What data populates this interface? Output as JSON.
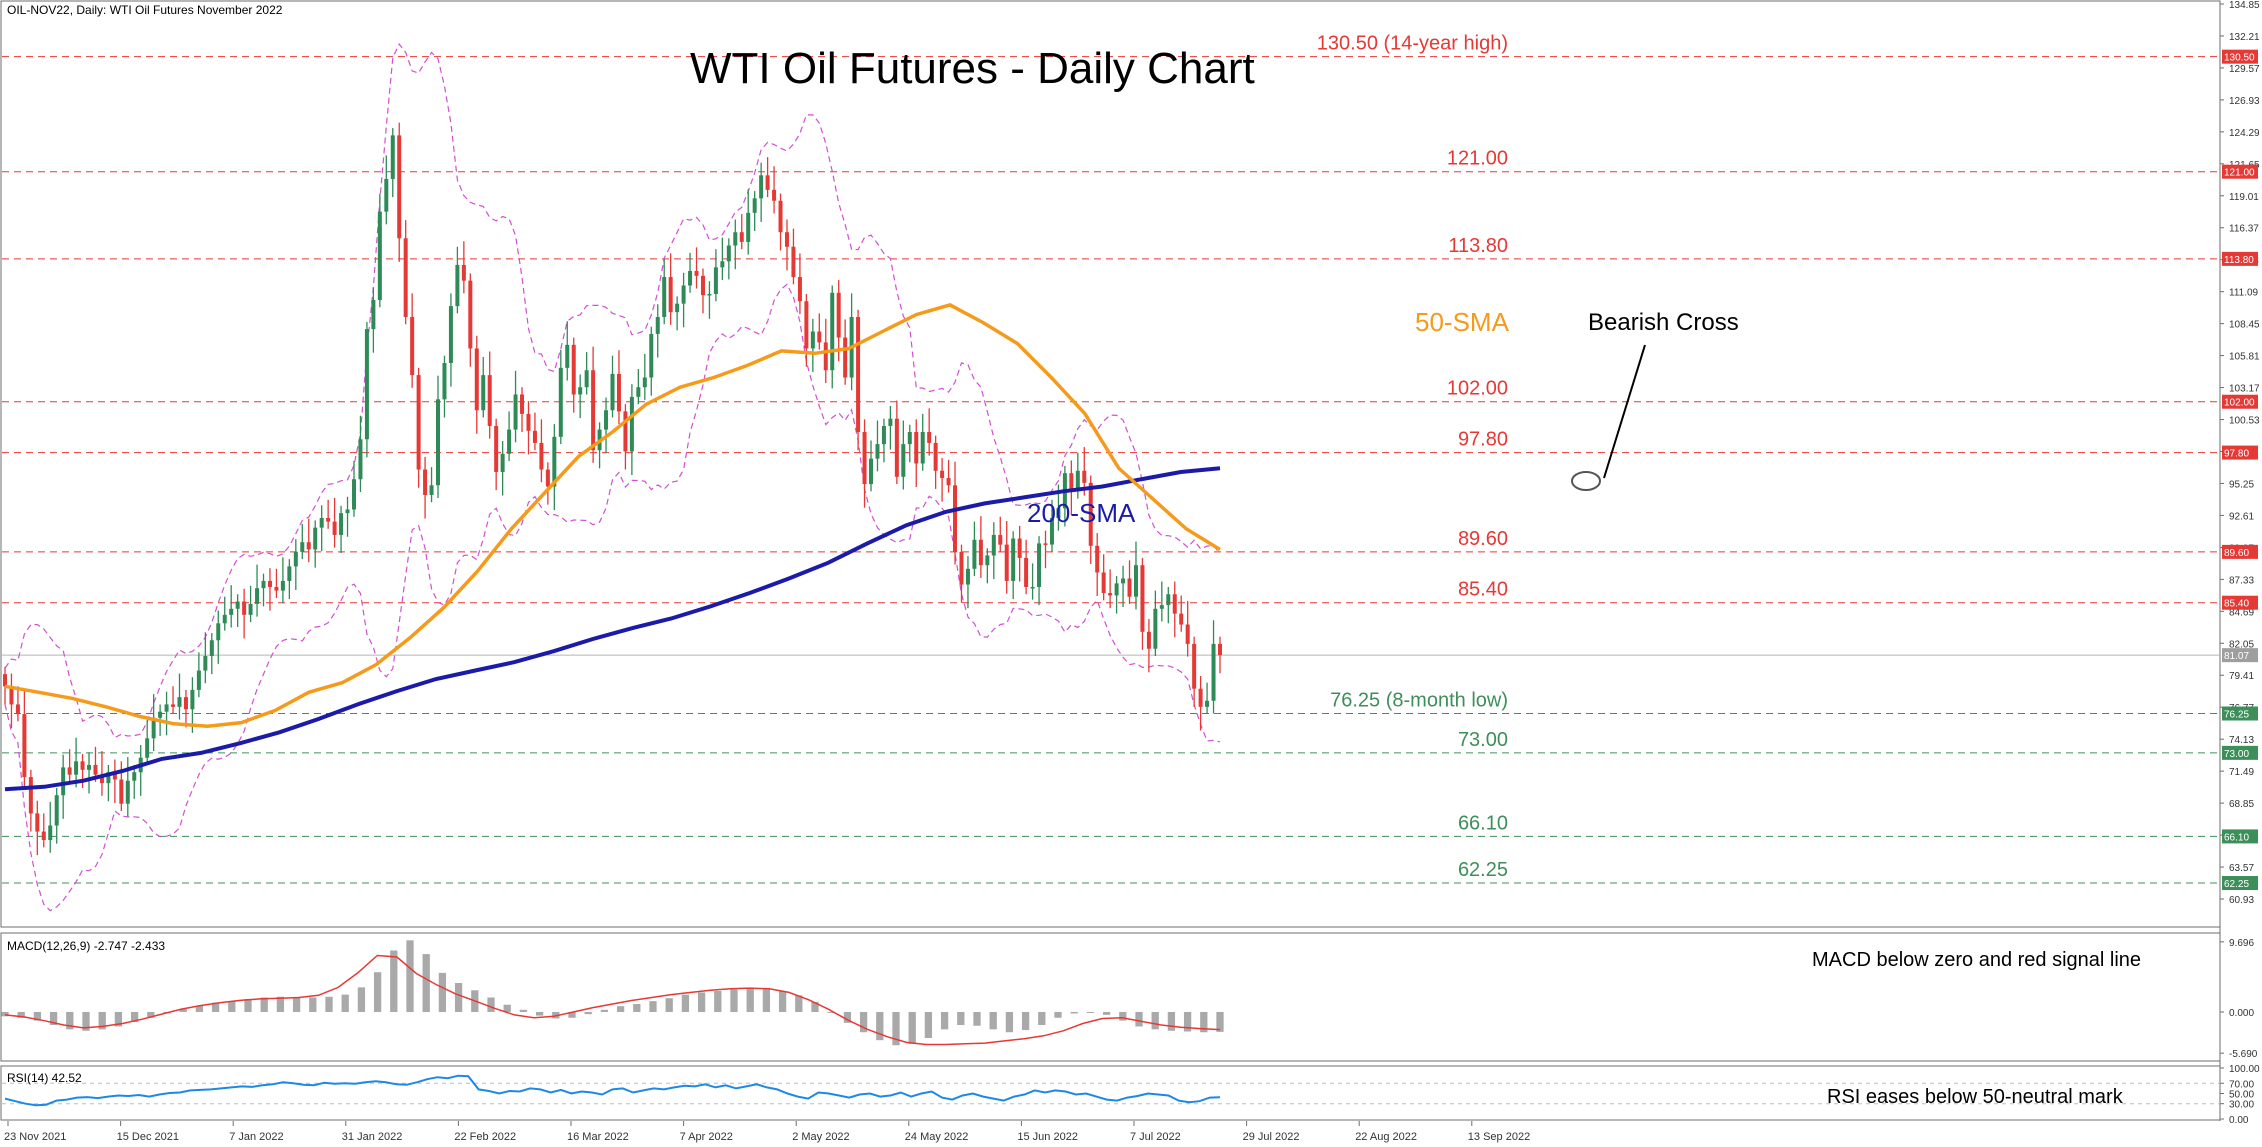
{
  "header": {
    "symbol_line": "OIL-NOV22, Daily:  WTI Oil Futures November 2022"
  },
  "chart_data": {
    "type": "candlestick",
    "title": "WTI Oil Futures - Daily Chart",
    "x_dates": [
      "23 Nov 2021",
      "15 Dec 2021",
      "7 Jan 2022",
      "31 Jan 2022",
      "22 Feb 2022",
      "16 Mar 2022",
      "7 Apr 2022",
      "2 May 2022",
      "24 May 2022",
      "15 Jun 2022",
      "7 Jul 2022",
      "29 Jul 2022",
      "22 Aug 2022",
      "13 Sep 2022"
    ],
    "price_axis": {
      "ticks": [
        "134.85",
        "132.21",
        "129.57",
        "126.93",
        "124.29",
        "121.65",
        "119.01",
        "116.37",
        "113.73",
        "111.09",
        "108.45",
        "105.81",
        "103.17",
        "100.53",
        "97.89",
        "95.25",
        "92.61",
        "89.97",
        "87.33",
        "84.69",
        "82.05",
        "79.41",
        "76.77",
        "74.13",
        "71.49",
        "68.85",
        "66.21",
        "63.57",
        "60.93"
      ],
      "range": [
        58.7,
        134.85
      ],
      "current_price": "81.07"
    },
    "levels": [
      {
        "value": 130.5,
        "label": "130.50 (14-year high)",
        "tag": "130.50",
        "type": "resistance"
      },
      {
        "value": 121.0,
        "label": "121.00",
        "tag": "121.00",
        "type": "resistance"
      },
      {
        "value": 113.8,
        "label": "113.80",
        "tag": "113.80",
        "type": "resistance"
      },
      {
        "value": 102.0,
        "label": "102.00",
        "tag": "102.00",
        "type": "resistance"
      },
      {
        "value": 97.8,
        "label": "97.80",
        "tag": "97.80",
        "type": "resistance"
      },
      {
        "value": 89.6,
        "label": "89.60",
        "tag": "89.60",
        "type": "resistance"
      },
      {
        "value": 85.4,
        "label": "85.40",
        "tag": "85.40",
        "type": "resistance"
      },
      {
        "value": 76.25,
        "label": "76.25 (8-month low)",
        "tag": "76.25",
        "type": "support"
      },
      {
        "value": 73.0,
        "label": "73.00",
        "tag": "73.00",
        "type": "support"
      },
      {
        "value": 66.1,
        "label": "66.10",
        "tag": "66.10",
        "type": "support"
      },
      {
        "value": 62.25,
        "label": "62.25",
        "tag": "62.25",
        "type": "support"
      }
    ],
    "close_series": [
      78.5,
      77.0,
      76.2,
      71.0,
      68.0,
      66.5,
      65.8,
      67.0,
      69.5,
      71.8,
      71.2,
      72.3,
      71.6,
      72.0,
      71.2,
      70.5,
      71.4,
      70.8,
      68.8,
      70.7,
      71.4,
      72.6,
      74.2,
      75.9,
      76.4,
      77.0,
      76.8,
      77.6,
      76.6,
      78.2,
      79.8,
      81.0,
      82.3,
      83.7,
      84.4,
      84.9,
      85.5,
      84.4,
      85.3,
      86.6,
      87.2,
      86.7,
      86.4,
      87.2,
      88.4,
      89.6,
      90.4,
      89.8,
      91.6,
      92.4,
      92.1,
      91.0,
      92.8,
      93.1,
      95.6,
      98.9,
      108.0,
      110.4,
      117.7,
      120.4,
      124.0,
      115.5,
      109.0,
      104.2,
      96.4,
      94.3,
      95.1,
      102.2,
      105.2,
      109.9,
      113.3,
      112.0,
      106.4,
      101.3,
      104.2,
      100.0,
      96.2,
      97.7,
      99.7,
      102.6,
      101.0,
      99.6,
      98.6,
      96.4,
      95.0,
      99.1,
      104.8,
      106.7,
      102.6,
      103.2,
      104.6,
      98.0,
      99.7,
      101.3,
      104.3,
      101.2,
      97.9,
      102.4,
      103.2,
      104.0,
      107.6,
      109.0,
      112.3,
      109.4,
      110.1,
      111.6,
      112.8,
      112.4,
      110.8,
      110.9,
      113.1,
      113.6,
      114.9,
      116.0,
      115.2,
      117.6,
      118.8,
      120.7,
      119.5,
      118.6,
      116.0,
      114.8,
      112.3,
      110.3,
      106.4,
      107.8,
      106.9,
      104.6,
      111.0,
      107.3,
      104.0,
      109.0,
      99.5,
      95.2,
      97.3,
      98.5,
      100.0,
      100.6,
      95.8,
      98.5,
      99.5,
      96.9,
      99.5,
      98.6,
      96.3,
      95.7,
      95.1,
      89.6,
      86.9,
      88.2,
      90.6,
      88.5,
      89.3,
      91.0,
      90.2,
      87.2,
      90.7,
      89.1,
      86.7,
      86.7,
      90.3,
      90.2,
      92.4,
      93.2,
      96.1,
      94.6,
      96.3,
      95.3,
      90.1,
      87.9,
      86.2,
      86.0,
      87.0,
      87.4,
      85.9,
      88.5,
      83.0,
      81.6,
      84.9,
      85.2,
      86.1,
      84.5,
      83.6,
      82.0,
      78.3,
      76.8,
      77.3,
      82.0,
      81.07
    ],
    "sma50_series": [
      78.5,
      78.0,
      77.5,
      76.8,
      76.0,
      75.4,
      75.2,
      75.5,
      76.5,
      78.0,
      78.8,
      80.3,
      82.5,
      85.0,
      88.0,
      91.5,
      94.5,
      97.5,
      99.5,
      101.8,
      103.2,
      104.0,
      105.0,
      106.2,
      106.0,
      106.4,
      107.8,
      109.2,
      110.0,
      108.5,
      106.8,
      104.0,
      101.0,
      96.5,
      94.0,
      91.5,
      89.8
    ],
    "sma200_series": [
      70.0,
      70.2,
      70.7,
      71.5,
      72.5,
      73.0,
      73.8,
      74.7,
      75.8,
      77.0,
      78.1,
      79.1,
      79.8,
      80.5,
      81.4,
      82.4,
      83.3,
      84.1,
      85.1,
      86.2,
      87.4,
      88.7,
      90.3,
      91.8,
      92.9,
      93.6,
      94.1,
      94.6,
      95.0,
      95.6,
      96.2,
      96.5
    ],
    "indicator_labels": {
      "sma50": "50-SMA",
      "sma200": "200-SMA",
      "cross": "Bearish Cross"
    },
    "macd": {
      "header": "MACD(12,26,9) -2.747 -2.433",
      "annotation": "MACD below zero and red signal line",
      "ticks": [
        "9.696",
        "0.000",
        "-5.690"
      ],
      "range": [
        -6.5,
        10.5
      ],
      "hist": [
        -0.6,
        -0.8,
        -1.2,
        -1.8,
        -2.4,
        -2.6,
        -2.4,
        -2.0,
        -1.4,
        -0.8,
        -0.2,
        0.4,
        0.9,
        1.3,
        1.5,
        1.8,
        2.0,
        2.1,
        2.0,
        2.0,
        2.1,
        2.4,
        3.4,
        5.5,
        8.5,
        9.9,
        8.0,
        5.4,
        4.0,
        3.0,
        2.0,
        1.0,
        0.3,
        -0.5,
        -0.9,
        -0.8,
        -0.3,
        0.3,
        0.8,
        1.1,
        1.5,
        1.9,
        2.4,
        2.7,
        2.9,
        3.1,
        3.3,
        3.3,
        2.9,
        2.3,
        1.4,
        0.0,
        -1.5,
        -2.8,
        -3.9,
        -4.6,
        -4.4,
        -3.6,
        -2.4,
        -1.8,
        -1.9,
        -2.4,
        -2.8,
        -2.5,
        -1.8,
        -0.8,
        -0.2,
        0.0,
        -0.4,
        -1.2,
        -2.0,
        -2.4,
        -2.6,
        -2.7,
        -2.8,
        -2.75
      ],
      "signal": [
        -0.4,
        -0.7,
        -1.2,
        -1.8,
        -2.2,
        -2.0,
        -1.6,
        -1.0,
        -0.3,
        0.4,
        0.9,
        1.3,
        1.6,
        1.8,
        1.9,
        2.0,
        2.3,
        3.4,
        5.4,
        7.8,
        7.6,
        5.3,
        3.8,
        2.5,
        1.5,
        0.5,
        -0.4,
        -0.8,
        -0.6,
        0.0,
        0.6,
        1.1,
        1.6,
        2.0,
        2.4,
        2.7,
        3.0,
        3.2,
        3.3,
        3.2,
        2.7,
        1.7,
        0.4,
        -1.1,
        -2.4,
        -3.4,
        -4.2,
        -4.5,
        -4.5,
        -4.4,
        -4.3,
        -4.0,
        -3.7,
        -3.3,
        -2.6,
        -1.6,
        -0.9,
        -0.8,
        -1.3,
        -1.8,
        -2.1,
        -2.3,
        -2.43
      ]
    },
    "rsi": {
      "header": "RSI(14) 42.52",
      "annotation": "RSI eases below 50-neutral mark",
      "ticks": [
        "100.00",
        "70.00",
        "50.00",
        "30.00",
        "0.00"
      ],
      "range": [
        0,
        100
      ],
      "values": [
        40,
        35,
        30,
        27,
        28,
        36,
        38,
        42,
        43,
        41,
        44,
        46,
        45,
        47,
        44,
        48,
        51,
        52,
        56,
        57,
        58,
        60,
        62,
        64,
        63,
        66,
        68,
        72,
        70,
        67,
        66,
        71,
        69,
        70,
        69,
        72,
        74,
        72,
        68,
        67,
        72,
        78,
        82,
        80,
        85,
        84,
        58,
        55,
        50,
        55,
        54,
        60,
        58,
        52,
        57,
        50,
        54,
        52,
        48,
        58,
        60,
        52,
        56,
        60,
        58,
        62,
        65,
        64,
        68,
        62,
        66,
        60,
        64,
        68,
        62,
        58,
        50,
        44,
        40,
        52,
        50,
        46,
        42,
        48,
        50,
        44,
        46,
        52,
        44,
        50,
        54,
        42,
        38,
        46,
        50,
        44,
        40,
        36,
        44,
        48,
        56,
        52,
        56,
        54,
        48,
        50,
        44,
        38,
        36,
        42,
        45,
        50,
        48,
        46,
        36,
        33,
        35,
        42,
        42.52
      ]
    }
  }
}
